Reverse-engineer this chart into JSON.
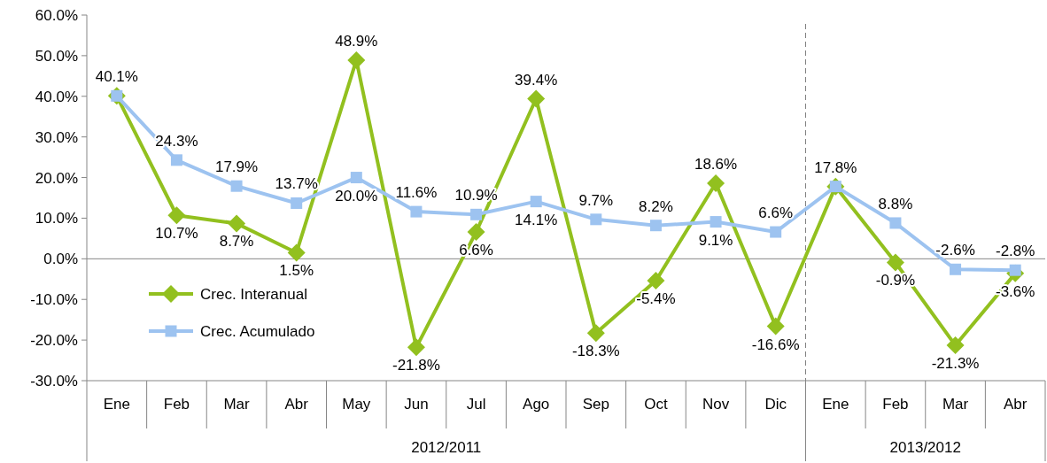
{
  "chart_data": {
    "type": "line",
    "categories": [
      "Ene",
      "Feb",
      "Mar",
      "Abr",
      "May",
      "Jun",
      "Jul",
      "Ago",
      "Sep",
      "Oct",
      "Nov",
      "Dic",
      "Ene",
      "Feb",
      "Mar",
      "Abr"
    ],
    "series": [
      {
        "name": "Crec. Interanual",
        "color": "#92c01f",
        "marker": "diamond",
        "values": [
          40.1,
          10.7,
          8.7,
          1.5,
          48.9,
          -21.8,
          6.6,
          39.4,
          -18.3,
          -5.4,
          18.6,
          -16.6,
          17.8,
          -0.9,
          -21.3,
          -3.6
        ],
        "value_labels": [
          null,
          "10.7%",
          "8.7%",
          "1.5%",
          "48.9%",
          "-21.8%",
          "6.6%",
          "39.4%",
          "-18.3%",
          "-5.4%",
          "18.6%",
          "-16.6%",
          null,
          "-0.9%",
          "-21.3%",
          "-3.6%"
        ]
      },
      {
        "name": "Crec. Acumulado",
        "color": "#9dc3f0",
        "marker": "square",
        "values": [
          40.1,
          24.3,
          17.9,
          13.7,
          20.0,
          11.6,
          10.9,
          14.1,
          9.7,
          8.2,
          9.1,
          6.6,
          17.8,
          8.8,
          -2.6,
          -2.8
        ],
        "value_labels": [
          "40.1%",
          "24.3%",
          "17.9%",
          "13.7%",
          "20.0%",
          "11.6%",
          "10.9%",
          "14.1%",
          "9.7%",
          "8.2%",
          "9.1%",
          "6.6%",
          "17.8%",
          "8.8%",
          "-2.6%",
          "-2.8%"
        ]
      }
    ],
    "ylim": [
      -30,
      60
    ],
    "yticks": [
      {
        "value": -30,
        "label": "-30.0%"
      },
      {
        "value": -20,
        "label": "-20.0%"
      },
      {
        "value": -10,
        "label": "-10.0%"
      },
      {
        "value": 0,
        "label": "0.0%"
      },
      {
        "value": 10,
        "label": "10.0%"
      },
      {
        "value": 20,
        "label": "20.0%"
      },
      {
        "value": 30,
        "label": "30.0%"
      },
      {
        "value": 40,
        "label": "40.0%"
      },
      {
        "value": 50,
        "label": "50.0%"
      },
      {
        "value": 60,
        "label": "60.0%"
      }
    ],
    "annotations": [
      "2012/2011",
      "2013/2012"
    ],
    "legend": "bottom left"
  }
}
